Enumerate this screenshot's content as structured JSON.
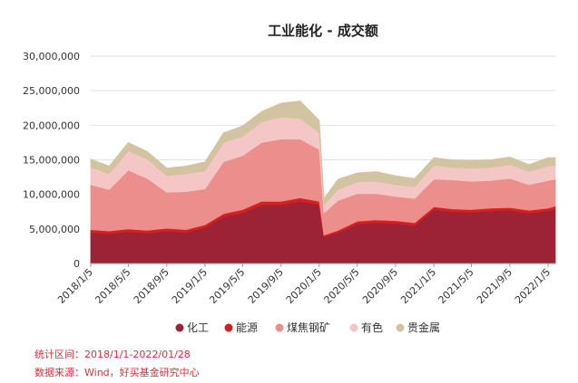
{
  "chart_data": {
    "type": "area",
    "stacked": true,
    "title": "工业能化 - 成交额",
    "ylim": [
      0,
      30000000
    ],
    "y_ticks": [
      "0",
      "5,000,000",
      "10,000,000",
      "15,000,000",
      "20,000,000",
      "25,000,000",
      "30,000,000"
    ],
    "x_tick_labels": [
      "2018/1/5",
      "2018/5/5",
      "2018/9/5",
      "2019/1/5",
      "2019/5/5",
      "2019/9/5",
      "2020/1/5",
      "2020/5/5",
      "2020/9/5",
      "2021/1/5",
      "2021/5/5",
      "2021/9/5",
      "2022/1/5"
    ],
    "x": [
      "2018/1/5",
      "2018/3/5",
      "2018/5/5",
      "2018/7/5",
      "2018/9/5",
      "2018/11/5",
      "2019/1/5",
      "2019/3/5",
      "2019/5/5",
      "2019/7/5",
      "2019/9/5",
      "2019/11/5",
      "2020/1/5",
      "2020/1/20",
      "2020/3/5",
      "2020/5/5",
      "2020/7/5",
      "2020/9/5",
      "2020/11/5",
      "2021/1/5",
      "2021/3/5",
      "2021/5/5",
      "2021/7/5",
      "2021/9/5",
      "2021/11/5",
      "2022/1/5",
      "2022/1/28"
    ],
    "series": [
      {
        "name": "化工",
        "color": "#9b2335",
        "values": [
          4500000,
          4300000,
          4600000,
          4400000,
          4700000,
          4500000,
          5200000,
          6800000,
          7300000,
          8500000,
          8500000,
          9000000,
          8500000,
          3800000,
          4500000,
          5700000,
          5900000,
          5800000,
          5500000,
          7800000,
          7500000,
          7400000,
          7600000,
          7700000,
          7300000,
          7600000,
          7900000
        ]
      },
      {
        "name": "能源",
        "color": "#d81e1e",
        "values": [
          400000,
          400000,
          400000,
          400000,
          400000,
          400000,
          400000,
          400000,
          500000,
          500000,
          500000,
          500000,
          500000,
          300000,
          300000,
          400000,
          400000,
          400000,
          400000,
          400000,
          400000,
          400000,
          400000,
          400000,
          400000,
          400000,
          400000
        ]
      },
      {
        "name": "煤焦钢矿",
        "color": "#ec8e8b",
        "values": [
          6500000,
          6000000,
          8500000,
          7500000,
          5200000,
          5500000,
          5200000,
          7500000,
          7800000,
          8500000,
          9000000,
          8500000,
          7500000,
          3200000,
          4300000,
          4000000,
          3800000,
          3500000,
          3500000,
          4000000,
          4200000,
          4100000,
          4000000,
          4200000,
          3700000,
          4000000,
          3900000
        ]
      },
      {
        "name": "有色",
        "color": "#f5c6c6",
        "values": [
          2500000,
          2300000,
          2800000,
          2800000,
          2400000,
          2600000,
          2600000,
          2800000,
          2800000,
          3000000,
          3200000,
          3000000,
          2400000,
          1200000,
          1600000,
          1700000,
          1800000,
          1700000,
          1700000,
          2000000,
          1800000,
          1900000,
          1900000,
          2000000,
          1900000,
          2100000,
          2000000
        ]
      },
      {
        "name": "贵金属",
        "color": "#d2c4a0",
        "values": [
          1200000,
          1100000,
          1200000,
          1100000,
          1100000,
          1100000,
          1300000,
          1400000,
          1500000,
          1500000,
          2000000,
          2500000,
          1800000,
          900000,
          1500000,
          1300000,
          1400000,
          1300000,
          1200000,
          1100000,
          1100000,
          1100000,
          1100000,
          1100000,
          1000000,
          1200000,
          1100000
        ]
      }
    ]
  },
  "notes": {
    "period": "统计区间：2018/1/1-2022/01/28",
    "source": "数据来源：Wind，好买基金研究中心"
  }
}
